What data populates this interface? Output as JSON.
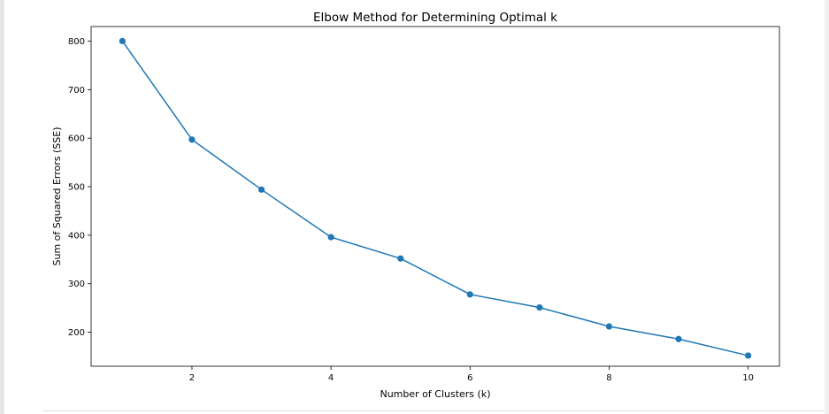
{
  "chart_data": {
    "type": "line",
    "title": "Elbow Method for Determining Optimal k",
    "xlabel": "Number of Clusters (k)",
    "ylabel": "Sum of Squared Errors (SSE)",
    "xlim": [
      0.55,
      10.45
    ],
    "ylim": [
      130,
      830
    ],
    "xticks": [
      2,
      4,
      6,
      8,
      10
    ],
    "yticks": [
      200,
      300,
      400,
      500,
      600,
      700,
      800
    ],
    "grid": false,
    "line_color": "#1f77b4",
    "marker": "circle",
    "series": [
      {
        "x": [
          1,
          2,
          3,
          4,
          5,
          6,
          7,
          8,
          9,
          10
        ],
        "y": [
          800,
          597,
          494,
          396,
          352,
          278,
          251,
          212,
          186,
          152
        ]
      }
    ]
  }
}
